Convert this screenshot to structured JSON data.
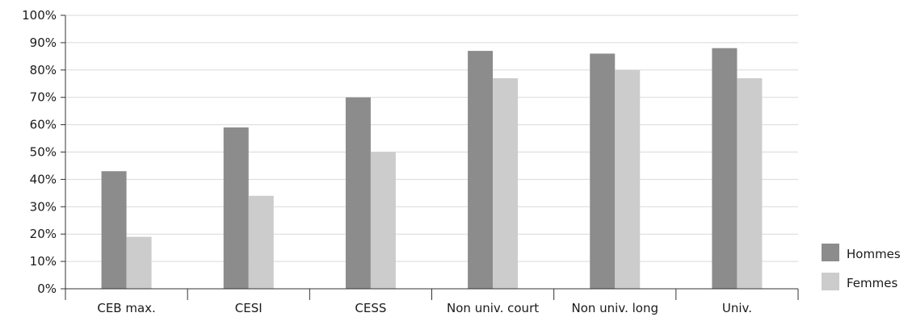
{
  "chart_data": {
    "type": "bar",
    "title": "",
    "xlabel": "",
    "ylabel": "",
    "ylim": [
      0,
      100
    ],
    "yticks": [
      "0%",
      "10%",
      "20%",
      "30%",
      "40%",
      "50%",
      "60%",
      "70%",
      "80%",
      "90%",
      "100%"
    ],
    "categories": [
      "CEB max.",
      "CESI",
      "CESS",
      "Non univ. court",
      "Non univ. long",
      "Univ."
    ],
    "series": [
      {
        "name": "Hommes",
        "color": "#8c8c8c",
        "values": [
          43,
          59,
          70,
          87,
          86,
          88
        ]
      },
      {
        "name": "Femmes",
        "color": "#cccccc",
        "values": [
          19,
          34,
          50,
          77,
          80,
          77
        ]
      }
    ],
    "grid": true,
    "legend_position": "bottom-right"
  }
}
